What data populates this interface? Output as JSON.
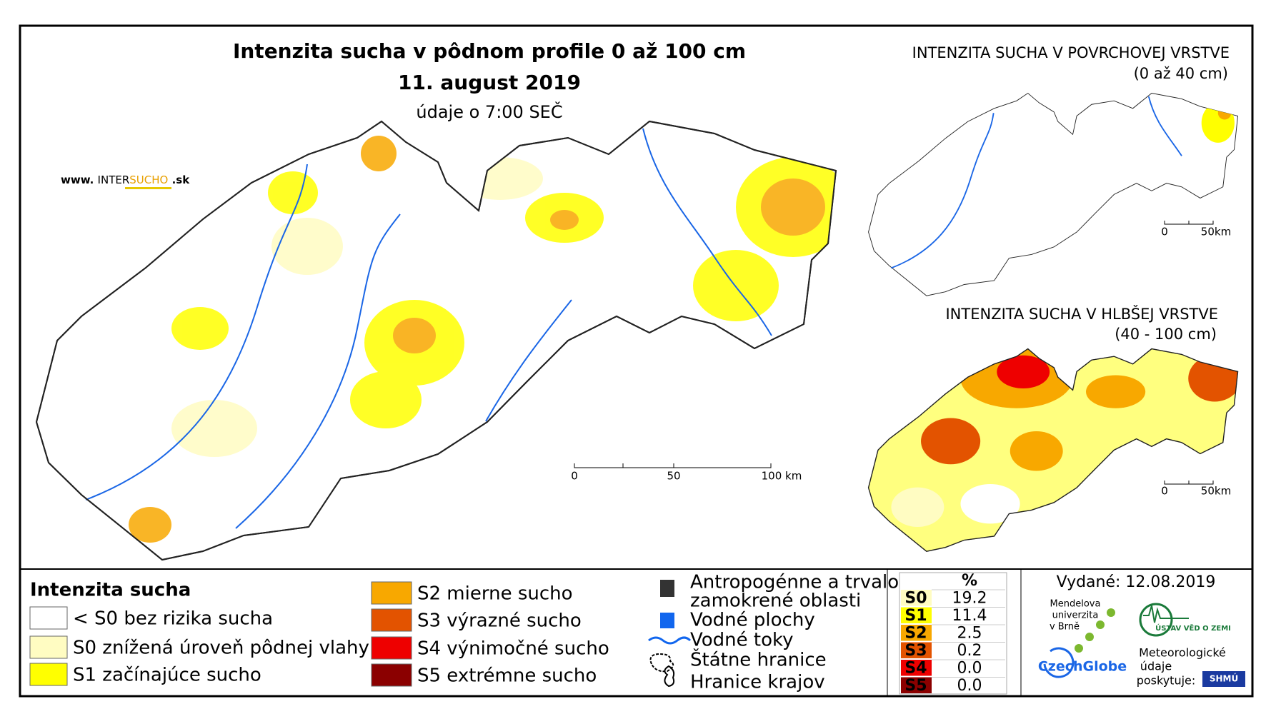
{
  "main_map": {
    "title": "Intenzita sucha v pôdnom profile 0 až 100 cm",
    "date": "11. august 2019",
    "subtitle": "údaje o 7:00 SEČ",
    "website_prefix": "www.",
    "website_name_1": "INTER",
    "website_name_2": "SUCHO",
    "website_suffix": ".sk",
    "scale": [
      "0",
      "50",
      "100 km"
    ]
  },
  "inset_surface": {
    "title": "INTENZITA SUCHA V POVRCHOVEJ VRSTVE",
    "subtitle": "(0 až 40 cm)",
    "scale": [
      "0",
      "50km"
    ]
  },
  "inset_deep": {
    "title": "INTENZITA SUCHA V HLBŠEJ VRSTVE",
    "subtitle": "(40 - 100 cm)",
    "scale": [
      "0",
      "50km"
    ]
  },
  "legend": {
    "title": "Intenzita sucha",
    "items": [
      {
        "label": "< S0 bez rizika sucha",
        "color": "#ffffff"
      },
      {
        "label": "S0 znížená úroveň pôdnej vlahy",
        "color": "#fffcc2"
      },
      {
        "label": "S1 začínajúce sucho",
        "color": "#ffff00"
      },
      {
        "label": "S2 mierne sucho",
        "color": "#f8a800"
      },
      {
        "label": "S3 výrazné sucho",
        "color": "#e35300"
      },
      {
        "label": "S4 výnimočné sucho",
        "color": "#ee0000"
      },
      {
        "label": "S5 extrémne sucho",
        "color": "#8b0000"
      }
    ]
  },
  "features": {
    "items": [
      {
        "label": [
          "Antropogénne a trvalo",
          "zamokrené oblasti"
        ]
      },
      {
        "label": [
          "Vodné plochy"
        ]
      },
      {
        "label": [
          "Vodné toky"
        ]
      },
      {
        "label": [
          "Štátne hranice"
        ]
      },
      {
        "label": [
          "Hranice krajov"
        ]
      }
    ]
  },
  "stats": {
    "header": "%",
    "rows": [
      {
        "code": "S0",
        "value": "19.2",
        "color": "#fffcc2"
      },
      {
        "code": "S1",
        "value": "11.4",
        "color": "#ffff00"
      },
      {
        "code": "S2",
        "value": "2.5",
        "color": "#f8a800"
      },
      {
        "code": "S3",
        "value": "0.2",
        "color": "#e35300"
      },
      {
        "code": "S4",
        "value": "0.0",
        "color": "#ee0000"
      },
      {
        "code": "S5",
        "value": "0.0",
        "color": "#8b0000"
      }
    ]
  },
  "issued": "Vydané: 12.08.2019",
  "logos": {
    "mendel": [
      "Mendelova",
      "univerzita",
      "v Brně"
    ],
    "czechglobe": "CzechGlobe",
    "ustav": "ÚSTAV VĚD O ZEMI",
    "provider": [
      "Meteorologické",
      "údaje",
      "poskytuje:"
    ],
    "shmu": "SHMÚ"
  }
}
